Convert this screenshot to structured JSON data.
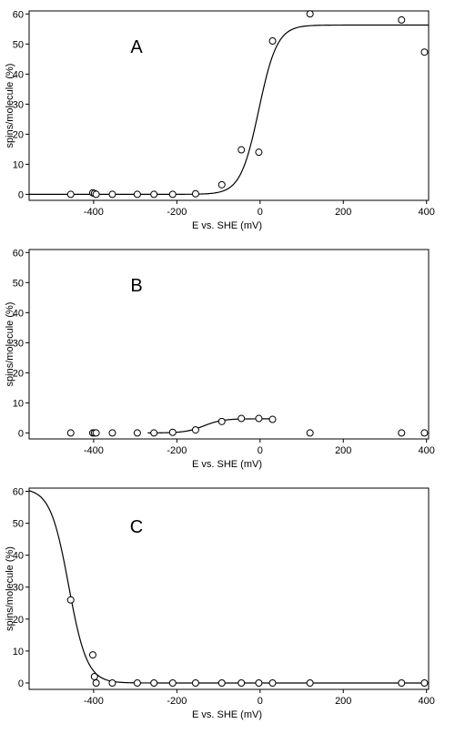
{
  "chart_data": [
    {
      "type": "scatter",
      "panel_label": "A",
      "xlabel": "E vs. SHE (mV)",
      "ylabel": "spins/molecule (%)",
      "xlim": [
        -555,
        405
      ],
      "ylim": [
        -2,
        61
      ],
      "xticks": [
        -400,
        -200,
        0,
        200,
        400
      ],
      "yticks": [
        0,
        10,
        20,
        30,
        40,
        50,
        60
      ],
      "grid": false,
      "series": [
        {
          "marker": "open-circle",
          "points": [
            {
              "x": -455,
              "y": 0
            },
            {
              "x": -402,
              "y": 0.5
            },
            {
              "x": -398,
              "y": 0.3
            },
            {
              "x": -394,
              "y": 0
            },
            {
              "x": -355,
              "y": 0
            },
            {
              "x": -295,
              "y": 0
            },
            {
              "x": -255,
              "y": 0
            },
            {
              "x": -210,
              "y": 0
            },
            {
              "x": -155,
              "y": 0.2
            },
            {
              "x": -92,
              "y": 3.2
            },
            {
              "x": -45,
              "y": 14.8
            },
            {
              "x": -3,
              "y": 14
            },
            {
              "x": 30,
              "y": 51
            },
            {
              "x": 120,
              "y": 60
            },
            {
              "x": 340,
              "y": 58
            },
            {
              "x": 395,
              "y": 47.3
            }
          ]
        },
        {
          "style": "line",
          "fit": {
            "min": 0,
            "max": 56.3,
            "midpoint": -3,
            "width": 22
          }
        }
      ]
    },
    {
      "type": "scatter",
      "panel_label": "B",
      "xlabel": "E vs. SHE (mV)",
      "ylabel": "spins/molecule (%)",
      "xlim": [
        -555,
        405
      ],
      "ylim": [
        -2,
        61
      ],
      "xticks": [
        -400,
        -200,
        0,
        200,
        400
      ],
      "yticks": [
        0,
        10,
        20,
        30,
        40,
        50,
        60
      ],
      "grid": false,
      "series": [
        {
          "marker": "open-circle",
          "points": [
            {
              "x": -455,
              "y": 0
            },
            {
              "x": -402,
              "y": 0
            },
            {
              "x": -398,
              "y": 0
            },
            {
              "x": -394,
              "y": 0
            },
            {
              "x": -355,
              "y": 0
            },
            {
              "x": -295,
              "y": 0
            },
            {
              "x": -255,
              "y": 0
            },
            {
              "x": -210,
              "y": 0.2
            },
            {
              "x": -155,
              "y": 1
            },
            {
              "x": -92,
              "y": 3.8
            },
            {
              "x": -45,
              "y": 4.8
            },
            {
              "x": -3,
              "y": 4.8
            },
            {
              "x": 30,
              "y": 4.5
            },
            {
              "x": 120,
              "y": 0
            },
            {
              "x": 340,
              "y": 0
            },
            {
              "x": 395,
              "y": 0
            }
          ]
        },
        {
          "style": "line",
          "x_range": [
            -270,
            30
          ],
          "fit": {
            "min": 0,
            "max": 4.7,
            "midpoint": -135,
            "width": 22
          }
        }
      ]
    },
    {
      "type": "scatter",
      "panel_label": "C",
      "xlabel": "E vs. SHE (mV)",
      "ylabel": "spins/molecule (%)",
      "xlim": [
        -555,
        405
      ],
      "ylim": [
        -2,
        61
      ],
      "xticks": [
        -400,
        -200,
        0,
        200,
        400
      ],
      "yticks": [
        0,
        10,
        20,
        30,
        40,
        50,
        60
      ],
      "grid": false,
      "series": [
        {
          "marker": "open-circle",
          "points": [
            {
              "x": -455,
              "y": 26
            },
            {
              "x": -402,
              "y": 8.8
            },
            {
              "x": -398,
              "y": 2
            },
            {
              "x": -394,
              "y": 0
            },
            {
              "x": -355,
              "y": 0
            },
            {
              "x": -295,
              "y": 0
            },
            {
              "x": -255,
              "y": 0
            },
            {
              "x": -210,
              "y": 0
            },
            {
              "x": -155,
              "y": 0
            },
            {
              "x": -92,
              "y": 0
            },
            {
              "x": -45,
              "y": 0
            },
            {
              "x": -3,
              "y": 0
            },
            {
              "x": 30,
              "y": 0
            },
            {
              "x": 120,
              "y": 0
            },
            {
              "x": 340,
              "y": 0
            },
            {
              "x": 395,
              "y": 0
            }
          ]
        },
        {
          "style": "line",
          "fit": {
            "min": 0,
            "max": 61,
            "midpoint": -460,
            "width": -22
          }
        }
      ]
    }
  ]
}
